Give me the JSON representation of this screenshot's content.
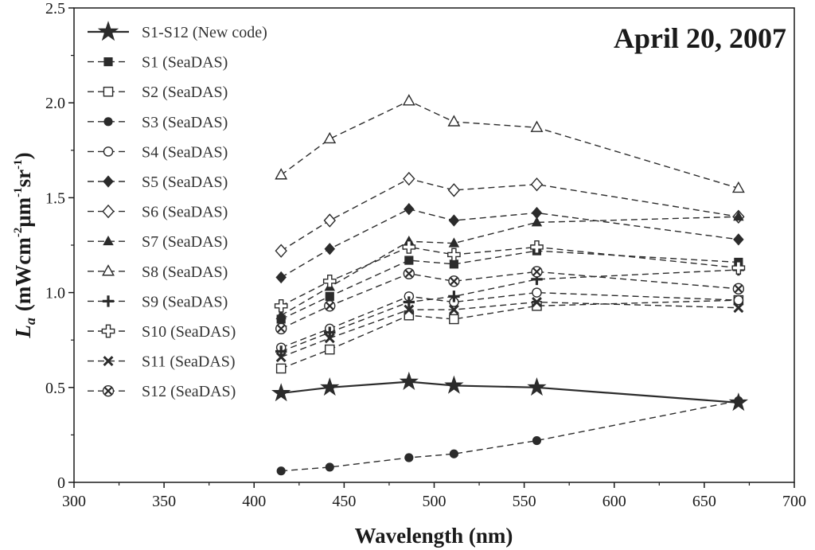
{
  "chart_data": {
    "type": "line",
    "title": "",
    "annotation": "April 20, 2007",
    "xlabel": "Wavelength (nm)",
    "ylabel": {
      "symbol": "L",
      "subscript": "a",
      "unit": "(mWcm",
      "unit_sup1": "-2",
      "unit_mid": "μm",
      "unit_sup2": "-1",
      "unit_end": "sr",
      "unit_sup3": "-1",
      "unit_close": ")"
    },
    "xlim": [
      300,
      700
    ],
    "ylim": [
      0,
      2.5
    ],
    "xticks": [
      "300",
      "350",
      "400",
      "450",
      "500",
      "550",
      "600",
      "650",
      "700"
    ],
    "yticks": [
      "0",
      "0.5",
      "1.0",
      "1.5",
      "2.0",
      "2.5"
    ],
    "xtick_values": [
      300,
      350,
      400,
      450,
      500,
      550,
      600,
      650,
      700
    ],
    "ytick_values": [
      0,
      0.5,
      1.0,
      1.5,
      2.0,
      2.5
    ],
    "x": [
      415,
      442,
      486,
      511,
      557,
      669
    ],
    "legend_position": "top-left",
    "grid": false,
    "series": [
      {
        "name": "S1-S12 (New code)",
        "marker": "star",
        "line": "solid",
        "values": [
          0.47,
          0.5,
          0.53,
          0.51,
          0.5,
          0.42
        ]
      },
      {
        "name": "S1 (SeaDAS)",
        "marker": "square-filled",
        "line": "dashed",
        "values": [
          0.86,
          0.98,
          1.17,
          1.15,
          1.22,
          1.16
        ]
      },
      {
        "name": "S2 (SeaDAS)",
        "marker": "square-open",
        "line": "dashed",
        "values": [
          0.6,
          0.7,
          0.88,
          0.86,
          0.93,
          0.96
        ]
      },
      {
        "name": "S3 (SeaDAS)",
        "marker": "circle-filled",
        "line": "dashed",
        "values": [
          0.06,
          0.08,
          0.13,
          0.15,
          0.22,
          0.43
        ]
      },
      {
        "name": "S4 (SeaDAS)",
        "marker": "circle-open",
        "line": "dashed",
        "values": [
          0.71,
          0.81,
          0.98,
          0.95,
          1.0,
          0.96
        ]
      },
      {
        "name": "S5 (SeaDAS)",
        "marker": "diamond-filled",
        "line": "dashed",
        "values": [
          1.08,
          1.23,
          1.44,
          1.38,
          1.42,
          1.28
        ]
      },
      {
        "name": "S6 (SeaDAS)",
        "marker": "diamond-open",
        "line": "dashed",
        "values": [
          1.22,
          1.38,
          1.6,
          1.54,
          1.57,
          1.4
        ]
      },
      {
        "name": "S7 (SeaDAS)",
        "marker": "triangle-filled",
        "line": "dashed",
        "values": [
          0.88,
          1.03,
          1.27,
          1.26,
          1.37,
          1.4
        ]
      },
      {
        "name": "S8 (SeaDAS)",
        "marker": "triangle-open",
        "line": "dashed",
        "values": [
          1.62,
          1.81,
          2.01,
          1.9,
          1.87,
          1.55
        ]
      },
      {
        "name": "S9 (SeaDAS)",
        "marker": "plus-bold",
        "line": "dashed",
        "values": [
          0.69,
          0.79,
          0.95,
          0.98,
          1.07,
          1.12
        ]
      },
      {
        "name": "S10 (SeaDAS)",
        "marker": "plus-open",
        "line": "dashed",
        "values": [
          0.93,
          1.06,
          1.24,
          1.2,
          1.24,
          1.13
        ]
      },
      {
        "name": "S11 (SeaDAS)",
        "marker": "x-bold",
        "line": "dashed",
        "values": [
          0.66,
          0.76,
          0.91,
          0.91,
          0.95,
          0.92
        ]
      },
      {
        "name": "S12 (SeaDAS)",
        "marker": "x-circle",
        "line": "dashed",
        "values": [
          0.81,
          0.93,
          1.1,
          1.06,
          1.11,
          1.02
        ]
      }
    ]
  },
  "colors": {
    "series_color": "#2b2b2b",
    "axis_color": "#1a1a1a"
  }
}
